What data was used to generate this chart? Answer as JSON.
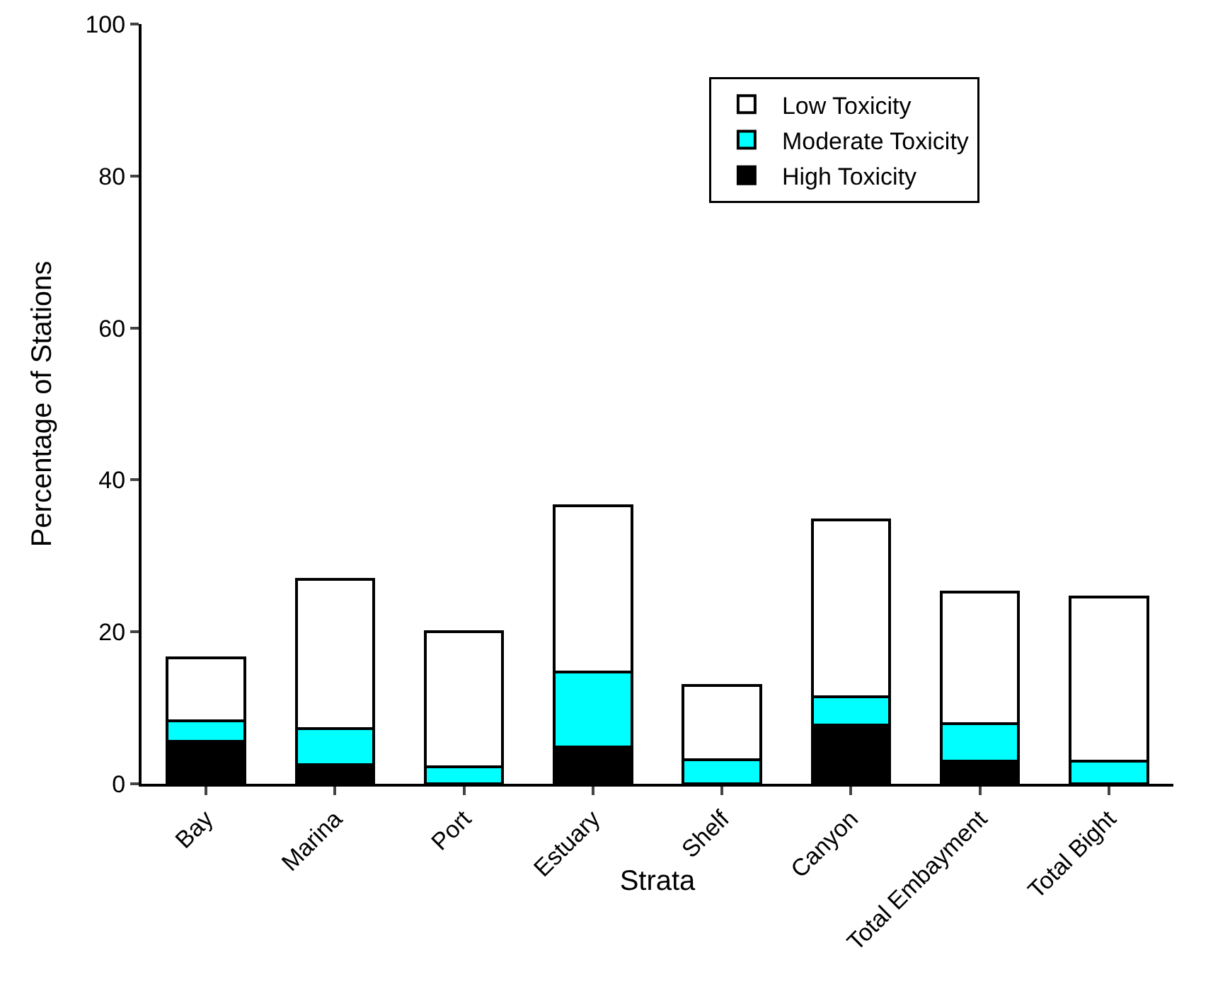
{
  "chart_data": {
    "type": "bar",
    "stacked": true,
    "xlabel": "Strata",
    "ylabel": "Percentage of Stations",
    "categories": [
      "Bay",
      "Marina",
      "Port",
      "Estuary",
      "Shelf",
      "Canyon",
      "Total Embayment",
      "Total Bight"
    ],
    "series": [
      {
        "name": "High Toxicity",
        "color": "#000000",
        "values": [
          5.6,
          2.5,
          0,
          4.8,
          0,
          7.7,
          3.0,
          0
        ]
      },
      {
        "name": "Moderate Toxicity",
        "color": "#00ffff",
        "values": [
          2.7,
          4.8,
          2.2,
          9.9,
          3.2,
          3.8,
          4.9,
          3.0
        ]
      },
      {
        "name": "Low Toxicity",
        "color": "#ffffff",
        "values": [
          8.3,
          19.6,
          17.8,
          21.9,
          9.7,
          23.2,
          17.3,
          21.6
        ]
      }
    ],
    "ylim": [
      0,
      100
    ],
    "yticks": [
      0,
      20,
      40,
      60,
      80,
      100
    ],
    "grid": false,
    "legend": "top right"
  }
}
